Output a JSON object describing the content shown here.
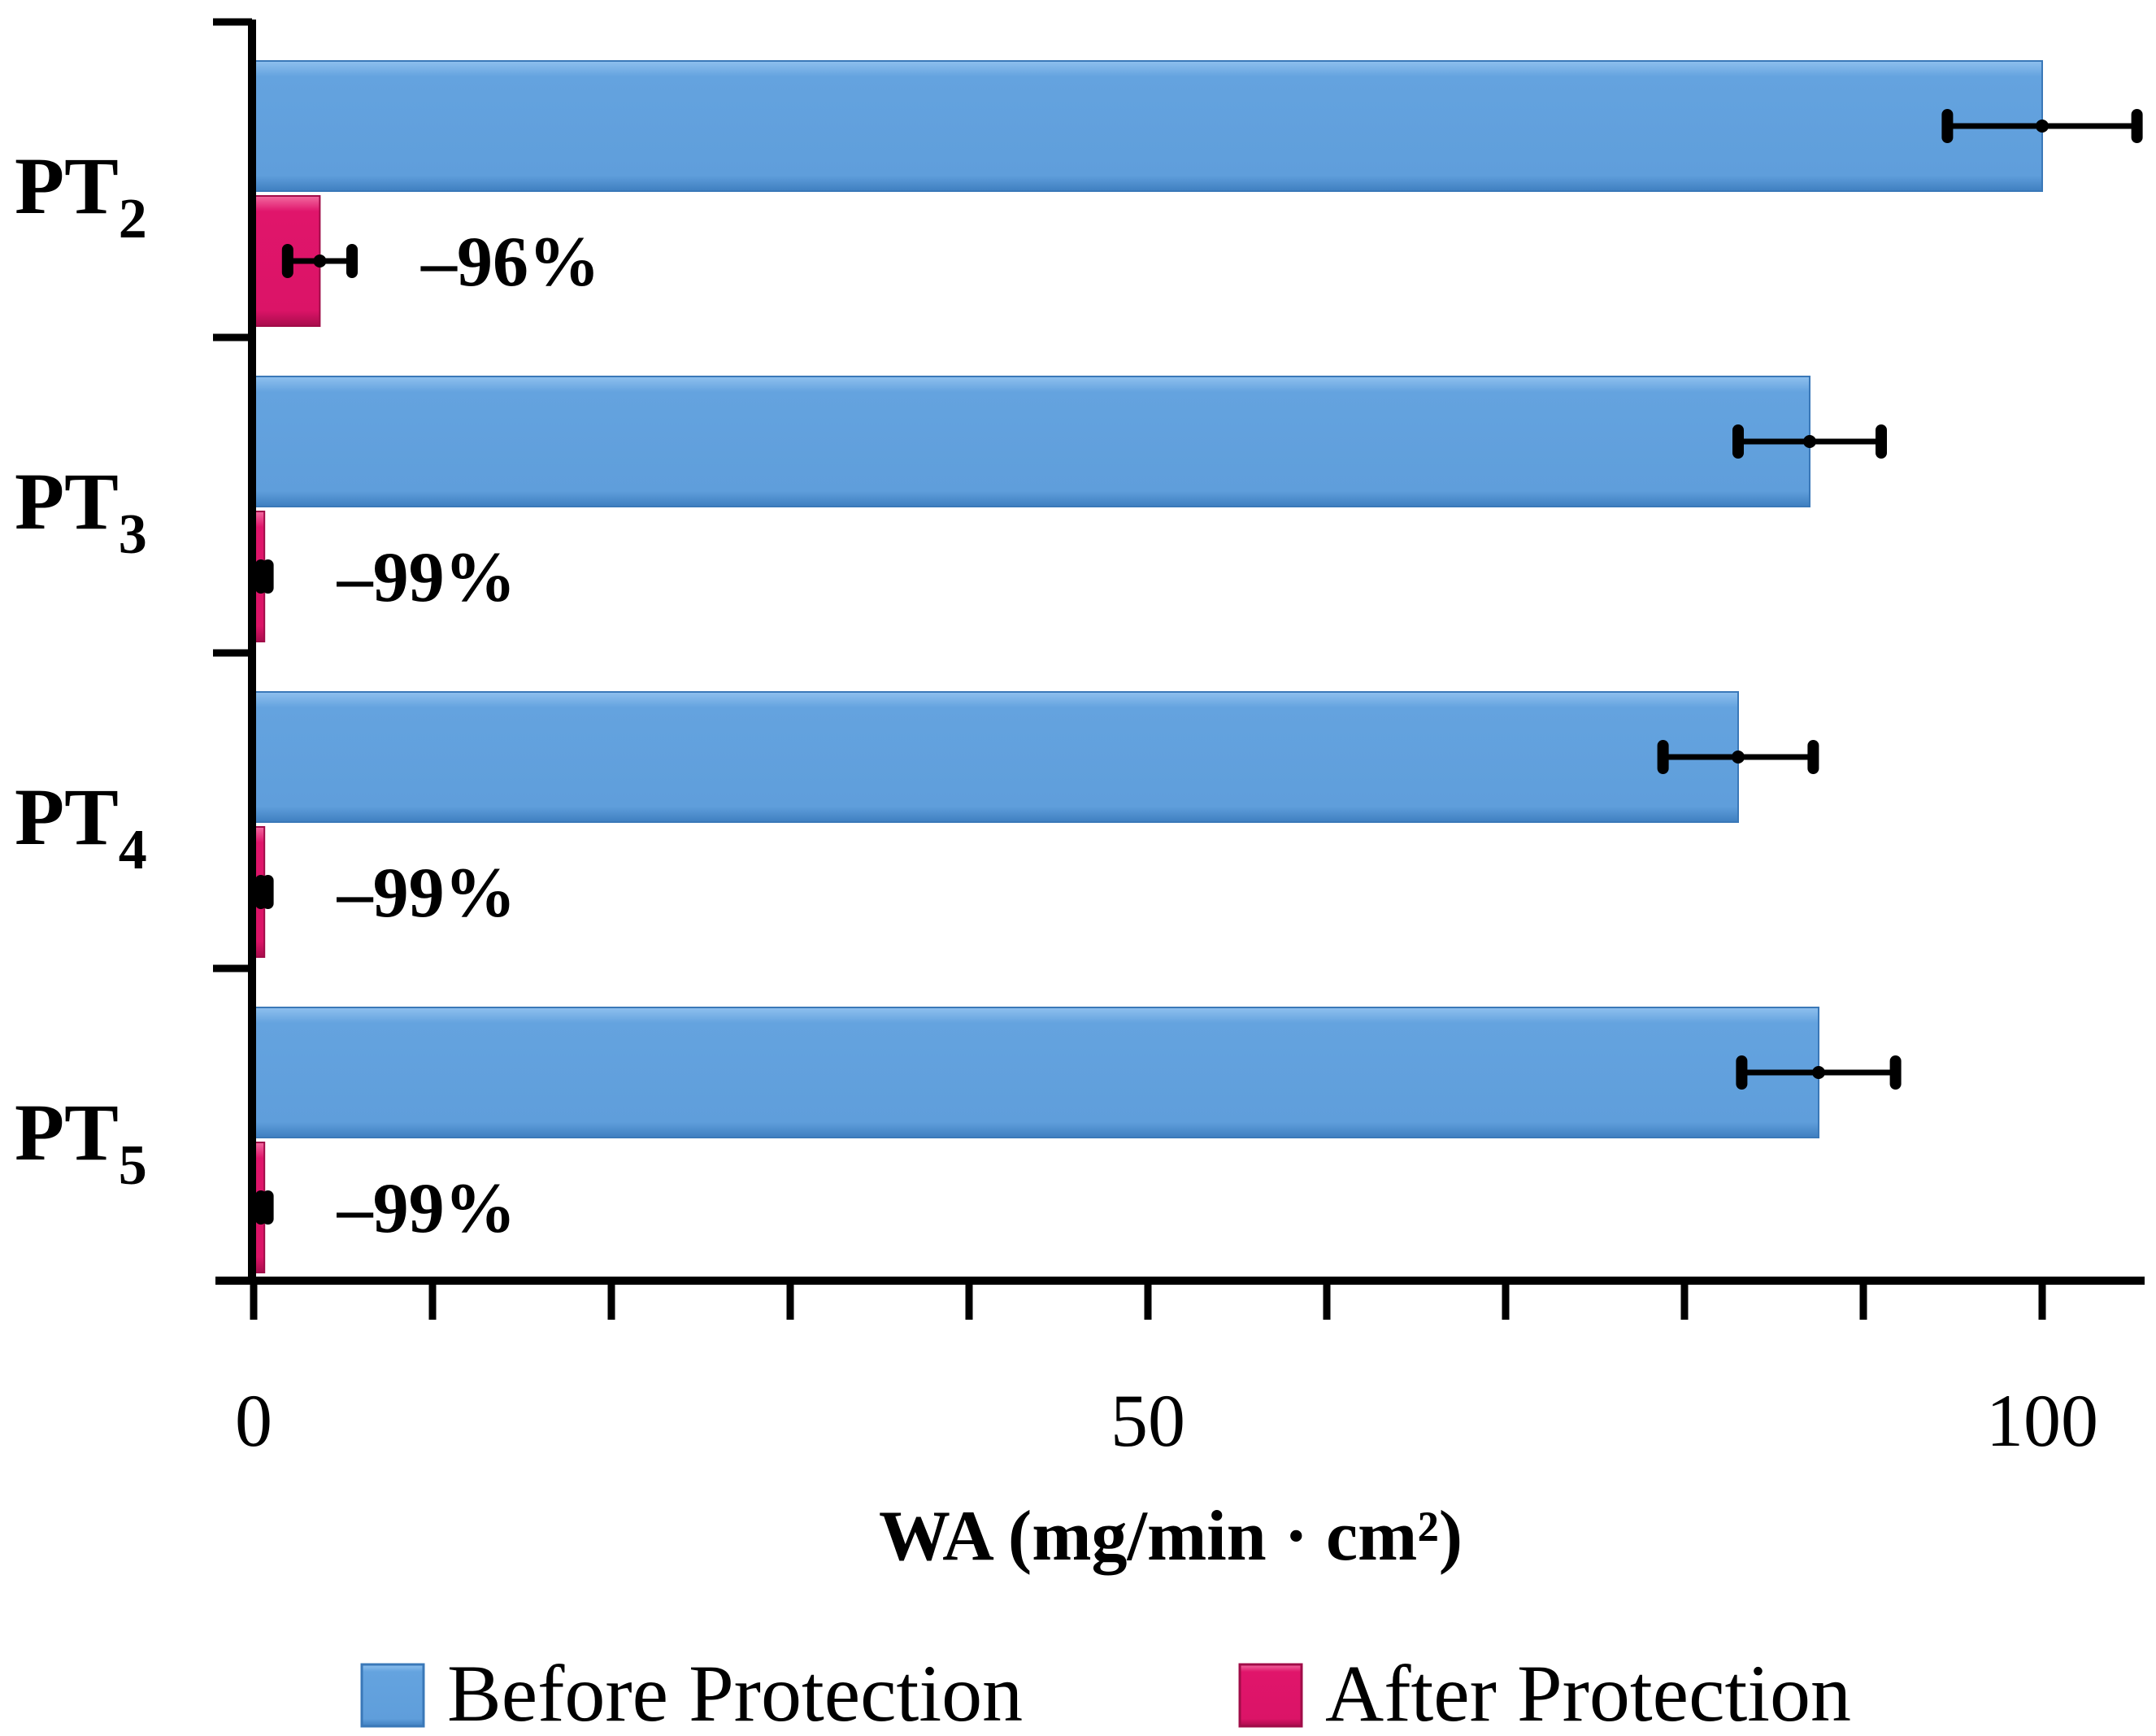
{
  "chart_data": {
    "type": "bar",
    "orientation": "horizontal",
    "categories": [
      {
        "prefix": "PT",
        "sub": "2"
      },
      {
        "prefix": "PT",
        "sub": "3"
      },
      {
        "prefix": "PT",
        "sub": "4"
      },
      {
        "prefix": "PT",
        "sub": "5"
      }
    ],
    "series": [
      {
        "name": "Before Protection",
        "color": "#64a3df",
        "values": [
          100,
          87,
          83,
          87.5
        ],
        "errors": [
          5.3,
          4,
          4.2,
          4.3
        ]
      },
      {
        "name": "After Protection",
        "color": "#e0156b",
        "values": [
          3.7,
          0.6,
          0.6,
          0.6
        ],
        "errors": [
          1.8,
          0.2,
          0.2,
          0.2
        ]
      }
    ],
    "annotations": [
      "–96%",
      "–99%",
      "–99%",
      "–99%"
    ],
    "xlabel": "WA (mg/min · cm²)",
    "xlim": [
      0,
      105.5
    ],
    "xticks": [
      0,
      50,
      100
    ],
    "xtick_labels": [
      "0",
      "50",
      "100"
    ],
    "minor_step": 10,
    "legend_position": "bottom"
  }
}
